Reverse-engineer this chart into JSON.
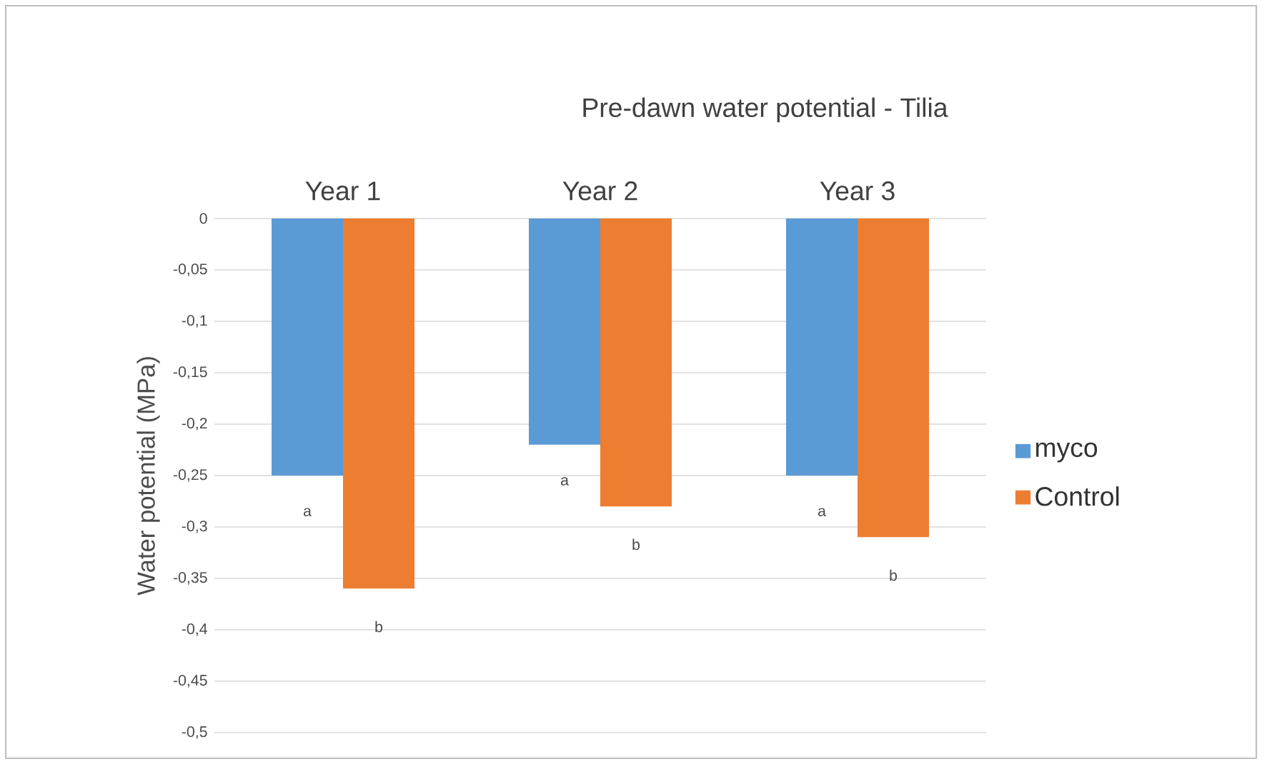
{
  "chart_data": {
    "type": "bar",
    "title": "Pre-dawn water potential - Tilia",
    "categories": [
      "Year 1",
      "Year 2",
      "Year 3"
    ],
    "series": [
      {
        "name": "myco",
        "color": "#5b9bd5",
        "values": [
          -0.25,
          -0.22,
          -0.25
        ]
      },
      {
        "name": "Control",
        "color": "#ed7d31",
        "values": [
          -0.36,
          -0.28,
          -0.31
        ]
      }
    ],
    "ylabel": "Water potential (MPa)",
    "ylim": [
      -0.5,
      0
    ],
    "yticks": [
      0,
      {
        "value": -0.05,
        "label": "-0,05"
      },
      {
        "value": -0.1,
        "label": "-0,1"
      },
      {
        "value": -0.15,
        "label": "-0,15"
      },
      {
        "value": -0.2,
        "label": "-0,2"
      },
      {
        "value": -0.25,
        "label": "-0,25"
      },
      {
        "value": -0.3,
        "label": "-0,3"
      },
      {
        "value": -0.35,
        "label": "-0,35"
      },
      {
        "value": -0.4,
        "label": "-0,4"
      },
      {
        "value": -0.45,
        "label": "-0,45"
      },
      {
        "value": -0.5,
        "label": "-0,5"
      }
    ],
    "grid": "y",
    "legend": "right",
    "annotations": [
      "a",
      "b",
      "a",
      "b",
      "a",
      "b"
    ]
  }
}
